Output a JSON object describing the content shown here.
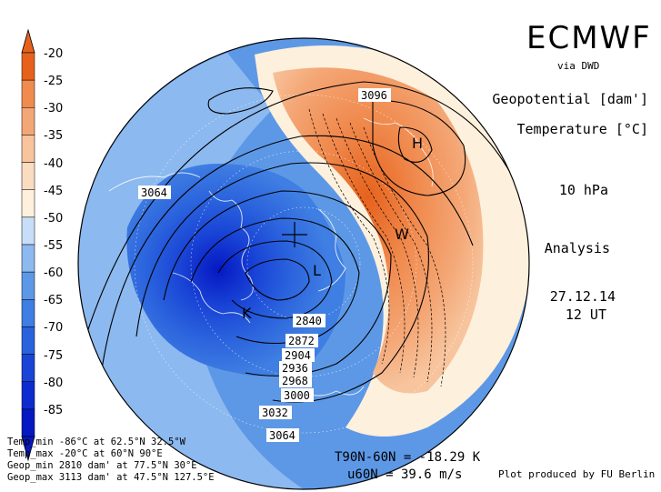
{
  "header": {
    "brand": "ECMWF",
    "via": "via DWD",
    "field1": "Geopotential [dam']",
    "field2": "Temperature [°C]",
    "level": "10 hPa",
    "analysis": "Analysis",
    "date": "27.12.14",
    "time": "12 UT"
  },
  "colorbar": {
    "ticks": [
      "-20",
      "-25",
      "-30",
      "-35",
      "-40",
      "-45",
      "-50",
      "-55",
      "-60",
      "-65",
      "-70",
      "-75",
      "-80",
      "-85"
    ],
    "colors": [
      "#e6621c",
      "#f08a4e",
      "#f4a776",
      "#f7c49d",
      "#fadcc0",
      "#fdf0dc",
      "#c8ddf7",
      "#8cb9ef",
      "#5d98e6",
      "#3f7ee2",
      "#2a62dd",
      "#1944d6",
      "#0d2ccf",
      "#0518c2"
    ]
  },
  "map": {
    "contour_labels": [
      "3096",
      "3064",
      "2840",
      "2872",
      "2904",
      "2936",
      "2968",
      "3000",
      "3032",
      "3064"
    ],
    "markers": [
      "H",
      "W",
      "L",
      "K"
    ]
  },
  "stats": {
    "temp_min": "Temp_min -86°C at 62.5°N 32.5°W",
    "temp_max": "Temp_max -20°C at 60°N 90°E",
    "geop_min": "Geop_min 2810 dam' at 77.5°N 30°E",
    "geop_max": "Geop_max 3113 dam' at 47.5°N 127.5°E"
  },
  "indices": {
    "t_line": "T90N-60N = -18.29 K",
    "u_line": "u60N = 39.6 m/s"
  },
  "credit": "Plot produced by FU Berlin"
}
